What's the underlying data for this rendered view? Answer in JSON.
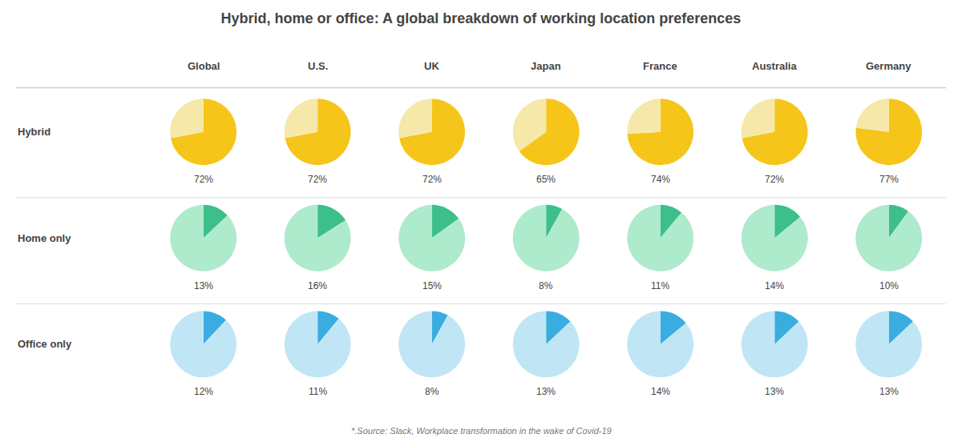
{
  "chart_data": {
    "type": "pie",
    "title": "Hybrid, home or office: A global breakdown of working location preferences",
    "annotations": [
      "*.Source: Slack, Workplace transformation in the wake of Covid-19"
    ],
    "categories": [
      "Global",
      "U.S.",
      "UK",
      "Japan",
      "France",
      "Australia",
      "Germany"
    ],
    "data_labels": true,
    "series": [
      {
        "name": "Hybrid",
        "colors": [
          "#F5C51A",
          "#F5E8A8"
        ],
        "values": [
          72,
          72,
          72,
          65,
          74,
          72,
          77
        ],
        "remainders": [
          28,
          28,
          28,
          35,
          26,
          28,
          23
        ],
        "value_labels": [
          "72%",
          "72%",
          "72%",
          "65%",
          "74%",
          "72%",
          "77%"
        ]
      },
      {
        "name": "Home only",
        "colors": [
          "#3DBF8A",
          "#AEEACC"
        ],
        "values": [
          13,
          16,
          15,
          8,
          11,
          14,
          10
        ],
        "remainders": [
          87,
          84,
          85,
          92,
          89,
          86,
          90
        ],
        "value_labels": [
          "13%",
          "16%",
          "15%",
          "8%",
          "11%",
          "14%",
          "10%"
        ]
      },
      {
        "name": "Office only",
        "colors": [
          "#3AADE0",
          "#C0E6F5"
        ],
        "values": [
          12,
          11,
          8,
          13,
          14,
          13,
          13
        ],
        "remainders": [
          88,
          89,
          92,
          87,
          86,
          87,
          87
        ],
        "value_labels": [
          "12%",
          "11%",
          "8%",
          "13%",
          "14%",
          "13%",
          "13%"
        ]
      }
    ]
  }
}
